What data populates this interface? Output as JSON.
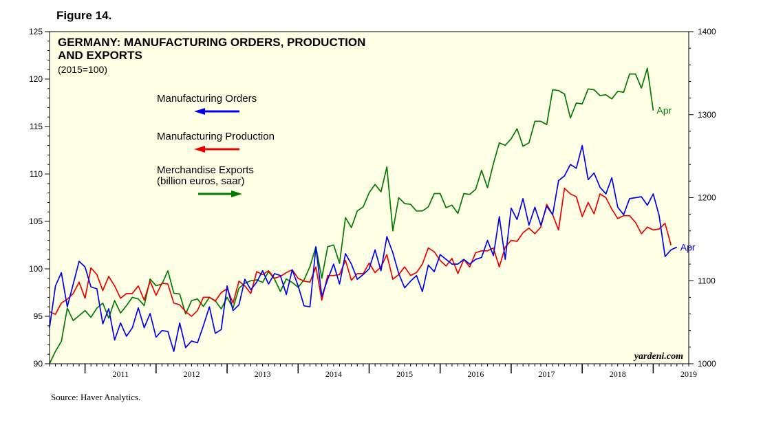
{
  "figure_label": "Figure 14.",
  "source": "Source: Haver Analytics.",
  "watermark": "yardeni.com",
  "colors": {
    "background": "#ffffe5",
    "orders": "#0000ee",
    "production": "#ee0000",
    "exports": "#007a00"
  },
  "chart_data": {
    "type": "line",
    "title_lines": [
      "GERMANY: MANUFACTURING ORDERS, PRODUCTION",
      "AND EXPORTS"
    ],
    "subtitle": "(2015=100)",
    "x_start": 2010.5,
    "x_end": 2019.5,
    "x_tick_labels": [
      "2011",
      "2012",
      "2013",
      "2014",
      "2015",
      "2016",
      "2017",
      "2018",
      "2019"
    ],
    "left_axis": {
      "min": 90,
      "max": 125,
      "ticks": [
        90,
        95,
        100,
        105,
        110,
        115,
        120,
        125
      ]
    },
    "right_axis": {
      "min": 1000,
      "max": 1400,
      "ticks": [
        1000,
        1100,
        1200,
        1300,
        1400
      ]
    },
    "series": [
      {
        "name": "Manufacturing Orders",
        "axis": "left",
        "legend_lines": [
          "Manufacturing Orders"
        ],
        "arrow": "left",
        "end_label": "Apr",
        "start": 2010.5,
        "values": [
          93.8,
          98.2,
          99.6,
          96.0,
          98.4,
          100.8,
          100.2,
          98.1,
          97.9,
          94.2,
          95.8,
          92.5,
          94.3,
          92.9,
          93.8,
          95.9,
          93.8,
          95.3,
          92.8,
          93.5,
          93.4,
          91.3,
          94.3,
          91.7,
          92.4,
          92.2,
          94.0,
          96.0,
          93.2,
          93.6,
          98.2,
          95.6,
          96.2,
          98.9,
          97.8,
          98.6,
          99.8,
          98.4,
          99.5,
          99.3,
          97.3,
          99.9,
          98.2,
          96.1,
          96.0,
          102.3,
          97.1,
          98.9,
          100.5,
          98.4,
          101.6,
          100.5,
          98.9,
          99.4,
          100.0,
          102.0,
          99.8,
          103.4,
          101.7,
          99.5,
          98.0,
          98.7,
          99.3,
          97.6,
          100.4,
          99.7,
          101.5,
          101.0,
          100.5,
          100.5,
          101.0,
          100.5,
          101.0,
          101.2,
          103.0,
          101.4,
          105.5,
          101.0,
          106.4,
          105.2,
          107.4,
          104.6,
          106.5,
          104.6,
          106.6,
          105.7,
          109.3,
          109.8,
          111.0,
          110.6,
          113.0,
          109.4,
          110.1,
          108.6,
          107.9,
          109.6,
          106.5,
          105.7,
          107.4,
          107.5,
          107.6,
          106.7,
          107.9,
          105.6,
          101.3,
          102.0,
          102.3
        ]
      },
      {
        "name": "Manufacturing Production",
        "axis": "left",
        "legend_lines": [
          "Manufacturing Production"
        ],
        "arrow": "left",
        "end_label": "",
        "start": 2010.5,
        "values": [
          95.5,
          95.2,
          96.4,
          96.8,
          97.4,
          98.6,
          96.9,
          100.1,
          99.4,
          97.7,
          99.2,
          98.2,
          96.9,
          97.4,
          97.4,
          98.2,
          96.7,
          98.7,
          97.2,
          98.5,
          98.4,
          96.4,
          96.2,
          95.5,
          95.0,
          95.6,
          97.0,
          97.0,
          96.6,
          97.5,
          97.9,
          96.4,
          98.7,
          98.2,
          97.4,
          99.7,
          99.4,
          99.8,
          99.0,
          99.2,
          99.6,
          99.9,
          99.0,
          98.7,
          98.6,
          100.2,
          96.7,
          99.3,
          99.3,
          99.4,
          100.9,
          98.8,
          99.5,
          99.5,
          100.6,
          99.6,
          100.2,
          101.5,
          98.9,
          99.4,
          100.2,
          99.3,
          99.6,
          100.5,
          102.2,
          101.8,
          100.9,
          100.3,
          101.1,
          99.5,
          101.0,
          100.2,
          101.7,
          101.9,
          101.9,
          102.2,
          100.2,
          102.3,
          103.0,
          102.9,
          103.8,
          104.3,
          103.7,
          104.4,
          106.8,
          105.7,
          104.1,
          108.5,
          107.9,
          107.6,
          105.5,
          107.0,
          105.8,
          107.9,
          107.5,
          106.3,
          105.3,
          105.6,
          105.6,
          104.9,
          103.7,
          104.4,
          104.1,
          104.2,
          104.8,
          102.5
        ]
      },
      {
        "name": "Merchandise Exports",
        "axis": "right",
        "legend_lines": [
          "Merchandise Exports",
          "(billion euros, saar)"
        ],
        "arrow": "right",
        "end_label": "Apr",
        "start": 2010.5,
        "values": [
          1000,
          1015,
          1027,
          1067,
          1052,
          1058,
          1064,
          1056,
          1067,
          1073,
          1055,
          1076,
          1061,
          1070,
          1080,
          1078,
          1070,
          1102,
          1094,
          1096,
          1112,
          1085,
          1084,
          1060,
          1076,
          1078,
          1069,
          1080,
          1076,
          1066,
          1080,
          1067,
          1091,
          1097,
          1100,
          1101,
          1098,
          1111,
          1102,
          1087,
          1102,
          1098,
          1092,
          1101,
          1117,
          1141,
          1103,
          1141,
          1143,
          1121,
          1176,
          1164,
          1184,
          1189,
          1206,
          1216,
          1207,
          1237,
          1160,
          1200,
          1193,
          1192,
          1184,
          1184,
          1189,
          1205,
          1205,
          1188,
          1191,
          1181,
          1205,
          1204,
          1210,
          1233,
          1212,
          1241,
          1266,
          1263,
          1271,
          1283,
          1262,
          1266,
          1292,
          1292,
          1288,
          1330,
          1329,
          1325,
          1296,
          1314,
          1313,
          1331,
          1330,
          1323,
          1324,
          1319,
          1328,
          1327,
          1349,
          1349,
          1332,
          1356,
          1305
        ]
      }
    ]
  }
}
